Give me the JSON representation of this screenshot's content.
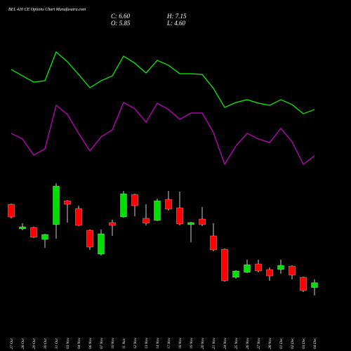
{
  "chart_data": {
    "type": "candlestick",
    "title": "BEL  420  CE Options Chart Munafasutra.com",
    "header": [
      "C: 6.60",
      "H: 7.15",
      "O: 5.85",
      "L: 4.60"
    ],
    "categories": [
      "27 Oct",
      "28 Oct",
      "29 Oct",
      "30 Oct",
      "31 Oct",
      "03 Nov",
      "04 Nov",
      "06 Nov",
      "07 Nov",
      "10 Nov",
      "11 Nov",
      "12 Nov",
      "13 Nov",
      "14 Nov",
      "17 Nov",
      "18 Nov",
      "19 Nov",
      "20 Nov",
      "21 Nov",
      "24 Nov",
      "25 Nov",
      "26 Nov",
      "27 Nov",
      "28 Nov",
      "01 Dec",
      "02 Dec",
      "03 Dec",
      "04 Dec"
    ],
    "open": [
      18.89,
      15.04,
      15.26,
      13.39,
      15.7,
      19.44,
      18.23,
      14.82,
      11.08,
      16.03,
      16.91,
      20.43,
      16.69,
      16.36,
      19.66,
      18.34,
      15.7,
      16.58,
      13.94,
      11.85,
      7.45,
      8.22,
      9.54,
      8.66,
      8.66,
      9.21,
      7.45,
      5.85
    ],
    "close": [
      16.91,
      15.37,
      13.72,
      14.16,
      21.75,
      18.89,
      15.59,
      12.18,
      14.27,
      15.59,
      20.54,
      18.67,
      15.92,
      19.44,
      18.12,
      15.81,
      16.03,
      15.7,
      11.74,
      6.9,
      8.44,
      9.43,
      8.44,
      7.67,
      9.32,
      7.78,
      5.36,
      6.6
    ],
    "high": [
      19.0,
      15.92,
      15.37,
      14.27,
      22.19,
      19.55,
      18.67,
      14.93,
      14.93,
      16.47,
      20.98,
      20.54,
      18.89,
      19.77,
      20.98,
      20.87,
      16.14,
      18.45,
      15.92,
      11.96,
      8.55,
      10.2,
      10.2,
      8.99,
      10.2,
      9.32,
      7.56,
      7.15
    ],
    "low": [
      16.69,
      14.82,
      13.61,
      12.07,
      13.5,
      16.03,
      15.48,
      11.74,
      10.86,
      13.94,
      16.8,
      17.02,
      15.59,
      16.25,
      17.9,
      15.59,
      12.95,
      15.48,
      11.52,
      6.79,
      7.23,
      8.11,
      8.22,
      6.9,
      8.0,
      7.12,
      5.14,
      4.6
    ],
    "up_color": "#00e000",
    "down_color": "#ff0000",
    "series": [
      {
        "color": "#00ff00",
        "values": [
          40.01,
          39.02,
          38.03,
          38.25,
          42.76,
          41.22,
          39.24,
          37.15,
          38.25,
          39.02,
          42.1,
          41.0,
          39.46,
          41.44,
          40.67,
          39.35,
          39.35,
          39.24,
          37.04,
          34.07,
          34.84,
          35.28,
          34.73,
          34.4,
          35.28,
          34.51,
          33.08,
          33.74
        ]
      },
      {
        "color": "#cc00cc",
        "values": [
          30.0,
          29.12,
          26.59,
          27.58,
          34.4,
          32.97,
          30.0,
          27.25,
          29.45,
          30.55,
          34.84,
          33.85,
          31.76,
          34.73,
          33.74,
          32.2,
          33.19,
          33.19,
          30.11,
          25.16,
          28.02,
          30.0,
          29.12,
          28.57,
          30.77,
          28.68,
          25.16,
          26.48
        ]
      }
    ],
    "ylim": [
      2.5,
      45.4
    ]
  }
}
